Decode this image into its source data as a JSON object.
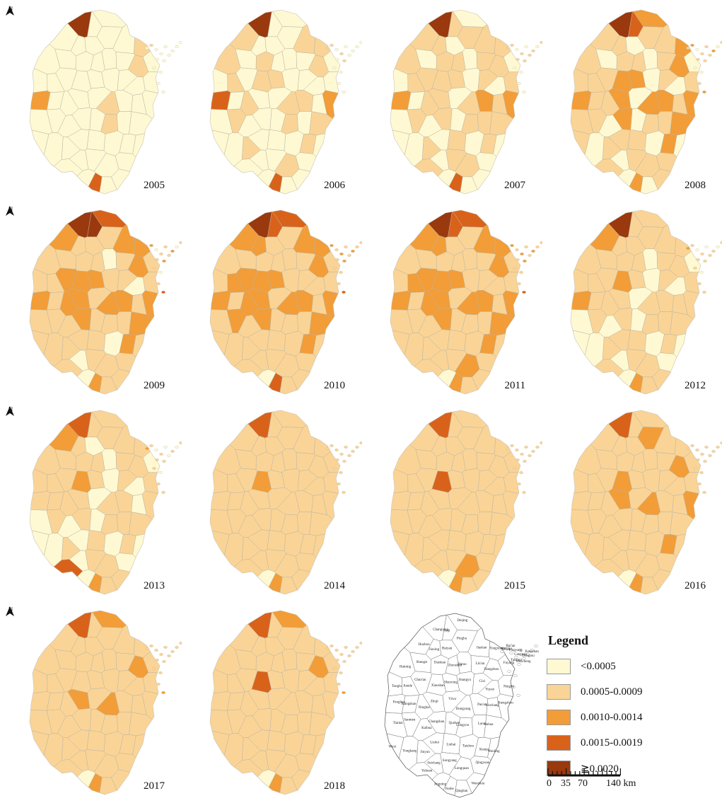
{
  "legend": {
    "title": "Legend",
    "classes": [
      {
        "label": "<0.0005",
        "color": "#FEF9D2"
      },
      {
        "label": "0.0005-0.0009",
        "color": "#FAD496"
      },
      {
        "label": "0.0010-0.0014",
        "color": "#F29D38"
      },
      {
        "label": "0.0015-0.0019",
        "color": "#D9621B"
      },
      {
        "label": "≧0.0020",
        "color": "#9A380E"
      }
    ]
  },
  "north_arrow": {
    "label": "N"
  },
  "panels": [
    {
      "year": "2005",
      "has_north_arrow": true,
      "regions": [
        4,
        0,
        0,
        0,
        0,
        0,
        0,
        0,
        1,
        0,
        0,
        0,
        0,
        0,
        0,
        1,
        0,
        0,
        0,
        0,
        0,
        0,
        0,
        0,
        0,
        0,
        2,
        0,
        0,
        0,
        0,
        1,
        0,
        0,
        0,
        0,
        0,
        0,
        0,
        0,
        1,
        0,
        0,
        0,
        0,
        0,
        0,
        0,
        0,
        0,
        0,
        0,
        0,
        0,
        0,
        0,
        0,
        3,
        0,
        0,
        0,
        0,
        0,
        0,
        3,
        0,
        0,
        2,
        0,
        1,
        0
      ]
    },
    {
      "year": "2006",
      "has_north_arrow": false,
      "regions": [
        4,
        0,
        0,
        1,
        0,
        0,
        0,
        1,
        1,
        1,
        0,
        1,
        0,
        0,
        0,
        1,
        0,
        0,
        1,
        0,
        1,
        1,
        0,
        0,
        0,
        0,
        3,
        0,
        1,
        0,
        0,
        1,
        1,
        0,
        2,
        0,
        1,
        0,
        0,
        0,
        1,
        0,
        1,
        0,
        0,
        1,
        0,
        0,
        0,
        1,
        0,
        0,
        0,
        0,
        1,
        0,
        0,
        3,
        0,
        0,
        0,
        0,
        1,
        0,
        4,
        0,
        0,
        2,
        0,
        1,
        0
      ]
    },
    {
      "year": "2007",
      "has_north_arrow": false,
      "regions": [
        4,
        1,
        0,
        1,
        1,
        0,
        1,
        1,
        1,
        1,
        0,
        1,
        1,
        0,
        1,
        1,
        0,
        0,
        1,
        1,
        1,
        1,
        0,
        1,
        0,
        1,
        2,
        0,
        1,
        1,
        0,
        1,
        2,
        1,
        2,
        0,
        1,
        0,
        1,
        0,
        1,
        1,
        1,
        0,
        0,
        1,
        0,
        1,
        0,
        1,
        0,
        1,
        0,
        1,
        1,
        0,
        0,
        3,
        0,
        0,
        1,
        0,
        1,
        0,
        3,
        1,
        0,
        2,
        0,
        1,
        0
      ]
    },
    {
      "year": "2008",
      "has_north_arrow": false,
      "regions": [
        4,
        3,
        2,
        1,
        1,
        0,
        1,
        1,
        2,
        1,
        0,
        1,
        1,
        0,
        1,
        2,
        0,
        1,
        1,
        1,
        2,
        2,
        0,
        1,
        0,
        1,
        2,
        1,
        1,
        2,
        0,
        2,
        2,
        1,
        2,
        1,
        1,
        0,
        2,
        0,
        1,
        1,
        2,
        1,
        0,
        1,
        1,
        1,
        0,
        2,
        0,
        1,
        0,
        1,
        1,
        1,
        0,
        2,
        0,
        1,
        1,
        0,
        1,
        0,
        4,
        1,
        0,
        2,
        1,
        1,
        0
      ]
    },
    {
      "year": "2009",
      "has_north_arrow": true,
      "regions": [
        4,
        4,
        3,
        2,
        1,
        1,
        1,
        2,
        2,
        1,
        1,
        1,
        1,
        0,
        1,
        2,
        1,
        1,
        1,
        2,
        2,
        2,
        1,
        1,
        0,
        1,
        2,
        1,
        2,
        2,
        1,
        2,
        2,
        1,
        2,
        1,
        1,
        1,
        2,
        1,
        1,
        1,
        2,
        1,
        1,
        1,
        1,
        1,
        0,
        2,
        1,
        1,
        0,
        1,
        1,
        1,
        0,
        2,
        1,
        1,
        1,
        1,
        1,
        0,
        4,
        1,
        1,
        2,
        1,
        2,
        0
      ]
    },
    {
      "year": "2010",
      "has_north_arrow": false,
      "regions": [
        4,
        3,
        3,
        2,
        2,
        1,
        1,
        2,
        2,
        1,
        1,
        1,
        1,
        1,
        1,
        2,
        1,
        1,
        2,
        2,
        2,
        2,
        1,
        1,
        1,
        1,
        2,
        1,
        2,
        2,
        1,
        2,
        2,
        1,
        2,
        1,
        2,
        1,
        2,
        1,
        1,
        1,
        2,
        1,
        1,
        1,
        1,
        1,
        1,
        2,
        1,
        1,
        1,
        1,
        1,
        1,
        0,
        3,
        1,
        1,
        2,
        1,
        1,
        1,
        3,
        1,
        1,
        2,
        1,
        1,
        0
      ]
    },
    {
      "year": "2011",
      "has_north_arrow": false,
      "regions": [
        4,
        3,
        3,
        2,
        2,
        1,
        1,
        2,
        2,
        1,
        1,
        1,
        1,
        1,
        1,
        2,
        1,
        1,
        2,
        2,
        2,
        2,
        1,
        1,
        1,
        1,
        2,
        1,
        2,
        2,
        1,
        2,
        2,
        1,
        2,
        1,
        1,
        1,
        2,
        1,
        1,
        1,
        2,
        1,
        1,
        1,
        1,
        1,
        1,
        2,
        1,
        1,
        1,
        1,
        2,
        1,
        0,
        2,
        1,
        1,
        1,
        1,
        1,
        1,
        3,
        1,
        1,
        2,
        1,
        1,
        0
      ]
    },
    {
      "year": "2012",
      "has_north_arrow": false,
      "regions": [
        4,
        1,
        1,
        2,
        1,
        1,
        1,
        1,
        1,
        1,
        1,
        1,
        1,
        0,
        1,
        1,
        0,
        1,
        1,
        1,
        2,
        1,
        0,
        1,
        0,
        1,
        2,
        1,
        1,
        1,
        0,
        1,
        1,
        1,
        1,
        0,
        1,
        0,
        1,
        0,
        1,
        1,
        1,
        0,
        0,
        1,
        1,
        1,
        0,
        1,
        0,
        1,
        0,
        1,
        1,
        0,
        0,
        2,
        1,
        1,
        1,
        0,
        1,
        0,
        2,
        1,
        0,
        2,
        1,
        1,
        0
      ]
    },
    {
      "year": "2013",
      "has_north_arrow": true,
      "regions": [
        3,
        1,
        1,
        2,
        1,
        0,
        1,
        1,
        1,
        1,
        1,
        1,
        1,
        0,
        1,
        1,
        0,
        1,
        1,
        1,
        2,
        1,
        0,
        1,
        0,
        1,
        1,
        1,
        1,
        1,
        0,
        1,
        1,
        0,
        1,
        0,
        1,
        0,
        1,
        0,
        1,
        1,
        1,
        0,
        0,
        1,
        0,
        1,
        0,
        1,
        0,
        3,
        0,
        1,
        1,
        0,
        0,
        2,
        1,
        1,
        1,
        0,
        1,
        0,
        2,
        1,
        0,
        2,
        1,
        1,
        0
      ]
    },
    {
      "year": "2014",
      "has_north_arrow": false,
      "regions": [
        3,
        1,
        1,
        1,
        1,
        1,
        1,
        1,
        1,
        1,
        1,
        1,
        1,
        1,
        1,
        1,
        1,
        1,
        1,
        1,
        2,
        1,
        1,
        1,
        1,
        1,
        1,
        1,
        1,
        1,
        1,
        1,
        1,
        1,
        1,
        1,
        1,
        1,
        1,
        1,
        1,
        1,
        1,
        1,
        1,
        1,
        1,
        1,
        1,
        1,
        1,
        1,
        1,
        1,
        1,
        1,
        0,
        2,
        1,
        1,
        1,
        1,
        1,
        1,
        2,
        1,
        1,
        1,
        1,
        1,
        0
      ]
    },
    {
      "year": "2015",
      "has_north_arrow": false,
      "regions": [
        3,
        1,
        1,
        1,
        1,
        1,
        1,
        1,
        1,
        1,
        1,
        1,
        1,
        1,
        1,
        1,
        1,
        1,
        1,
        1,
        3,
        1,
        1,
        1,
        1,
        1,
        1,
        1,
        1,
        1,
        1,
        1,
        1,
        1,
        1,
        1,
        1,
        1,
        1,
        1,
        1,
        1,
        1,
        1,
        1,
        1,
        1,
        1,
        1,
        1,
        1,
        1,
        1,
        1,
        2,
        1,
        0,
        2,
        1,
        1,
        1,
        1,
        1,
        1,
        2,
        1,
        1,
        1,
        1,
        1,
        0
      ]
    },
    {
      "year": "2016",
      "has_north_arrow": false,
      "regions": [
        3,
        1,
        1,
        1,
        1,
        1,
        2,
        1,
        1,
        1,
        1,
        1,
        1,
        1,
        1,
        2,
        1,
        1,
        1,
        1,
        2,
        1,
        1,
        1,
        1,
        1,
        1,
        1,
        1,
        2,
        1,
        2,
        1,
        1,
        2,
        1,
        1,
        1,
        1,
        1,
        1,
        1,
        1,
        1,
        1,
        1,
        1,
        1,
        1,
        2,
        1,
        1,
        1,
        1,
        1,
        1,
        0,
        2,
        1,
        1,
        1,
        1,
        1,
        1,
        2,
        1,
        1,
        1,
        1,
        1,
        0
      ]
    },
    {
      "year": "2017",
      "has_north_arrow": true,
      "regions": [
        3,
        1,
        2,
        1,
        1,
        1,
        1,
        1,
        1,
        1,
        1,
        1,
        1,
        1,
        1,
        2,
        1,
        1,
        1,
        1,
        1,
        1,
        1,
        1,
        1,
        1,
        1,
        1,
        1,
        2,
        1,
        2,
        1,
        1,
        1,
        1,
        1,
        1,
        1,
        1,
        1,
        1,
        1,
        1,
        1,
        1,
        1,
        1,
        1,
        1,
        1,
        1,
        1,
        1,
        1,
        1,
        0,
        2,
        1,
        1,
        1,
        1,
        1,
        1,
        2,
        1,
        1,
        1,
        1,
        1,
        0
      ]
    },
    {
      "year": "2018",
      "has_north_arrow": false,
      "regions": [
        3,
        1,
        2,
        1,
        1,
        1,
        1,
        1,
        1,
        1,
        1,
        1,
        1,
        1,
        1,
        2,
        1,
        1,
        1,
        1,
        3,
        1,
        1,
        1,
        1,
        1,
        1,
        1,
        1,
        1,
        1,
        1,
        1,
        1,
        1,
        1,
        1,
        1,
        1,
        1,
        1,
        1,
        1,
        1,
        1,
        1,
        1,
        1,
        1,
        1,
        1,
        1,
        1,
        1,
        1,
        1,
        0,
        2,
        1,
        1,
        1,
        1,
        1,
        1,
        2,
        1,
        1,
        1,
        1,
        1,
        0
      ]
    }
  ],
  "reference_map": {
    "labels": [
      "Changxing",
      "Anji",
      "Deqing",
      "Huzhou",
      "Jiaxing",
      "Haiyan",
      "Pinghu",
      "Jiashan",
      "Tongxiang",
      "Haining",
      "Shengsi",
      "Daishan",
      "Zhoushan",
      "Putuo",
      "Lin'an",
      "Hangzhou",
      "Fuyang",
      "Tonglu",
      "Jiande",
      "Chun'an",
      "Xiaoshan",
      "Shaoxing",
      "Shangyu",
      "Cixi",
      "Yuyao",
      "Ningbo",
      "Fenghua",
      "Xiangshan",
      "Ninghai",
      "Zhuji",
      "Yiwu",
      "Dongyang",
      "Pan'an",
      "Xinchang",
      "Shengzhou",
      "Tiantai",
      "Sanmen",
      "Kaihua",
      "Changshan",
      "Quzhou",
      "Longyou",
      "Lanxi",
      "Jinhua",
      "Wuyi",
      "Yongkang",
      "Jinyun",
      "Lishui",
      "Linhai",
      "Taizhou",
      "Xianju",
      "Wenling",
      "Yuhuan",
      "Suichang",
      "Songyang",
      "Longquan",
      "Qingyuan",
      "Jingning",
      "Yunhe",
      "Qingtian",
      "Wenzhou",
      "Yongjia",
      "Rui'an",
      "Pingyang",
      "Cangnan",
      "Taishun",
      "Wencheng",
      "Dongtou",
      "Jiangshan"
    ]
  },
  "scale_bar": {
    "ticks": [
      "0",
      "35",
      "70",
      "140 km"
    ]
  }
}
